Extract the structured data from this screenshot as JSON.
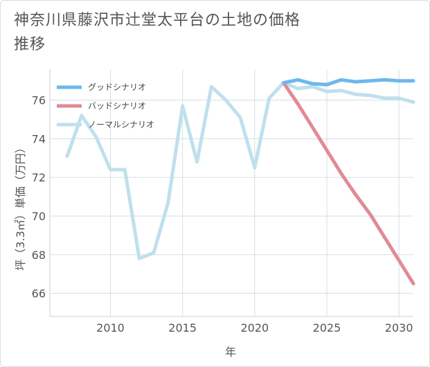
{
  "chart_data": {
    "type": "line",
    "title": "神奈川県藤沢市辻堂太平台の土地の価格推移",
    "xlabel": "年",
    "ylabel": "坪（3.3㎡）単価（万円）",
    "xlim": [
      2005.8,
      2031
    ],
    "ylim": [
      64.8,
      77.6
    ],
    "x_ticks": [
      2010,
      2015,
      2020,
      2025,
      2030
    ],
    "y_ticks": [
      66,
      68,
      70,
      72,
      74,
      76
    ],
    "grid": true,
    "legend_position": "top-left",
    "series": [
      {
        "name": "グッドシナリオ",
        "color": "#6cb8ec",
        "x": [
          2022,
          2023,
          2024,
          2025,
          2026,
          2027,
          2028,
          2029,
          2030,
          2031
        ],
        "y": [
          76.9,
          77.05,
          76.85,
          76.8,
          77.05,
          76.95,
          77.0,
          77.05,
          77.0,
          77.0
        ]
      },
      {
        "name": "バッドシナリオ",
        "color": "#e08b95",
        "x": [
          2022,
          2023,
          2024,
          2025,
          2026,
          2027,
          2028,
          2029,
          2030,
          2031
        ],
        "y": [
          76.9,
          75.8,
          74.6,
          73.4,
          72.2,
          71.1,
          70.1,
          68.9,
          67.7,
          66.5
        ]
      },
      {
        "name": "ノーマルシナリオ",
        "color": "#bfe0ec",
        "x": [
          2007,
          2008,
          2009,
          2010,
          2011,
          2012,
          2013,
          2014,
          2015,
          2016,
          2017,
          2018,
          2019,
          2020,
          2021,
          2022,
          2023,
          2024,
          2025,
          2026,
          2027,
          2028,
          2029,
          2030,
          2031
        ],
        "y": [
          73.1,
          75.2,
          74.1,
          72.4,
          72.4,
          67.8,
          68.1,
          70.7,
          75.7,
          72.8,
          76.7,
          76.0,
          75.1,
          72.5,
          76.1,
          76.9,
          76.6,
          76.7,
          76.45,
          76.5,
          76.3,
          76.25,
          76.1,
          76.1,
          75.9
        ]
      }
    ]
  }
}
